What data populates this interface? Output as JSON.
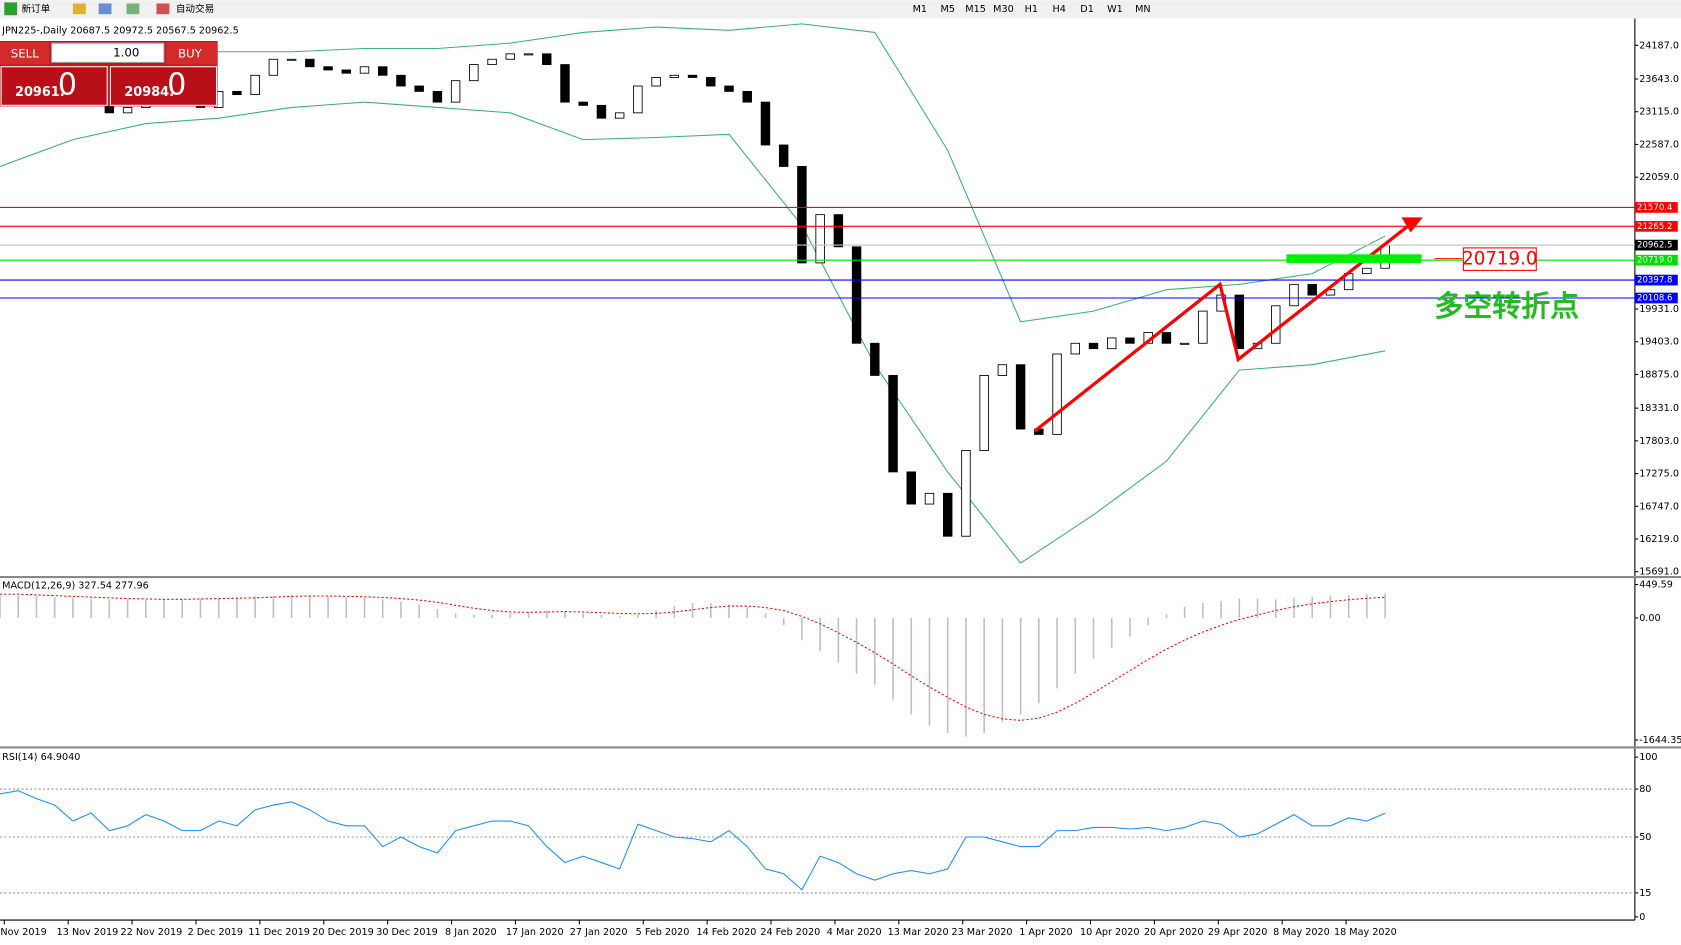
{
  "toolbar": {
    "new_order": "新订单",
    "auto_trading": "自动交易",
    "timeframes": [
      "M1",
      "M5",
      "M15",
      "M30",
      "H1",
      "H4",
      "D1",
      "W1",
      "MN"
    ]
  },
  "trade_panel": {
    "sell": "SELL",
    "buy": "BUY",
    "lots": "1.00",
    "bid_small": "20961.",
    "bid_big": "0",
    "ask_small": "20984.",
    "ask_big": "0"
  },
  "annotations": {
    "level_box": "20719.0",
    "turning_point": "多空转折点"
  },
  "x_axis_labels": [
    "Nov 2019",
    "13 Nov 2019",
    "22 Nov 2019",
    "2 Dec 2019",
    "11 Dec 2019",
    "20 Dec 2019",
    "30 Dec 2019",
    "8 Jan 2020",
    "17 Jan 2020",
    "27 Jan 2020",
    "5 Feb 2020",
    "14 Feb 2020",
    "24 Feb 2020",
    "4 Mar 2020",
    "13 Mar 2020",
    "23 Mar 2020",
    "1 Apr 2020",
    "10 Apr 2020",
    "20 Apr 2020",
    "29 Apr 2020",
    "8 May 2020",
    "18 May 2020"
  ],
  "chart_data": [
    {
      "type": "candlestick",
      "title": "JPN225-,Daily 20687.5 20972.5 20567.5 20962.5",
      "up_color": "#ffffff",
      "down_color": "#000000",
      "band_color": "#3cb371",
      "values": [
        23270,
        23270,
        23270,
        23270,
        23218,
        23322,
        23097,
        23184,
        23357,
        23443,
        23530,
        23184,
        23443,
        23391,
        23703,
        23962,
        23962,
        23841,
        23789,
        23737,
        23841,
        23703,
        23530,
        23443,
        23270,
        23616,
        23876,
        23962,
        24049,
        24049,
        23876,
        23270,
        23218,
        23011,
        23097,
        23530,
        23668,
        23703,
        23668,
        23530,
        23443,
        23270,
        22578,
        22232,
        20675,
        21454,
        20935,
        19378,
        18859,
        17302,
        16783,
        16956,
        16264,
        17648,
        18859,
        19032,
        17994,
        17907,
        19205,
        19378,
        19291,
        19464,
        19378,
        19551,
        19378,
        19378,
        19897,
        20156,
        19291,
        19378,
        19983,
        20329,
        20156,
        20243,
        20502,
        20589,
        20962.5
      ],
      "upper_band": [
        23841,
        23962,
        24135,
        24083,
        24083,
        24135,
        24135,
        24222,
        24395,
        24481,
        24429,
        24533,
        24395,
        22492,
        19724,
        19897,
        20243,
        20329,
        20502,
        21108
      ],
      "lower_band": [
        22232,
        22665,
        22924,
        23011,
        23184,
        23270,
        23184,
        23097,
        22665,
        22699,
        22751,
        21281,
        19032,
        17302,
        15831,
        16609,
        17474,
        18945,
        19032,
        19256
      ],
      "levels": [
        {
          "value": 21570.4,
          "color": "#ff0000"
        },
        {
          "value": 21265.2,
          "color": "#ff0000"
        },
        {
          "value": 20962.5,
          "color": "#c0c0c0",
          "label_bg": "#000000"
        },
        {
          "value": 20719.0,
          "label": "20719.0",
          "color": "#00e000"
        },
        {
          "value": 20397.8,
          "color": "#0000ff"
        },
        {
          "value": 20108.6,
          "color": "#0000ff"
        }
      ],
      "ylim": [
        15640,
        24568
      ],
      "yticks": [
        {
          "value": 24187,
          "label": "24187.0"
        },
        {
          "value": 23643,
          "label": "23643.0"
        },
        {
          "value": 23115,
          "label": "23115.0"
        },
        {
          "value": 22587,
          "label": "22587.0"
        },
        {
          "value": 22059,
          "label": "22059.0"
        },
        {
          "value": 19931,
          "label": "19931.0"
        },
        {
          "value": 19403,
          "label": "19403.0"
        },
        {
          "value": 18875,
          "label": "18875.0"
        },
        {
          "value": 18331,
          "label": "18331.0"
        },
        {
          "value": 17803,
          "label": "17803.0"
        },
        {
          "value": 17275,
          "label": "17275.0"
        },
        {
          "value": 16747,
          "label": "16747.0"
        },
        {
          "value": 16219,
          "label": "16219.0"
        },
        {
          "value": 15691,
          "label": "15691.0"
        }
      ]
    },
    {
      "type": "macd",
      "title": "MACD(12,26,9) 327.54 277.96",
      "histogram_color": "#c0c0c0",
      "signal_color": "#ff0000",
      "values": [
        300,
        300,
        290,
        280,
        270,
        260,
        250,
        250,
        240,
        240,
        250,
        260,
        270,
        280,
        290,
        300,
        310,
        300,
        290,
        280,
        270,
        250,
        220,
        180,
        120,
        60,
        40,
        40,
        60,
        80,
        100,
        90,
        60,
        40,
        20,
        40,
        100,
        160,
        200,
        200,
        180,
        150,
        60,
        -100,
        -300,
        -450,
        -600,
        -750,
        -900,
        -1100,
        -1300,
        -1450,
        -1550,
        -1600,
        -1550,
        -1400,
        -1300,
        -1150,
        -950,
        -750,
        -550,
        -400,
        -250,
        -100,
        50,
        150,
        200,
        230,
        260,
        260,
        250,
        270,
        285,
        300,
        310,
        320,
        327.54
      ],
      "signal": [
        320,
        320,
        310,
        300,
        290,
        280,
        270,
        260,
        255,
        250,
        250,
        255,
        260,
        265,
        270,
        280,
        290,
        295,
        295,
        290,
        285,
        275,
        260,
        240,
        210,
        170,
        130,
        100,
        80,
        75,
        80,
        85,
        80,
        70,
        60,
        55,
        60,
        80,
        110,
        140,
        160,
        160,
        140,
        100,
        20,
        -80,
        -200,
        -330,
        -470,
        -620,
        -780,
        -930,
        -1070,
        -1200,
        -1300,
        -1360,
        -1380,
        -1350,
        -1270,
        -1150,
        -1010,
        -860,
        -710,
        -560,
        -420,
        -300,
        -190,
        -100,
        -20,
        40,
        100,
        150,
        190,
        220,
        245,
        265,
        277.96
      ],
      "ylim": [
        -1644.35,
        449.59
      ],
      "yticks": [
        449.59,
        {
          "value": 0,
          "label": "0.00"
        },
        -1644.35
      ]
    },
    {
      "type": "line",
      "title": "RSI(14) 64.9040",
      "color": "#1e90ff",
      "values": [
        77,
        79,
        74,
        70,
        60,
        65,
        54,
        57,
        64,
        60,
        54,
        54,
        60,
        57,
        67,
        70,
        72,
        67,
        60,
        57,
        57,
        44,
        50,
        44,
        40,
        54,
        57,
        60,
        60,
        57,
        44,
        34,
        38,
        34,
        30,
        58,
        54,
        50,
        49,
        47,
        54,
        44,
        30,
        27,
        17,
        38,
        34,
        27,
        23,
        27,
        29,
        27,
        30,
        50,
        50,
        47,
        44,
        44,
        54,
        54,
        56,
        56,
        55,
        56,
        54,
        56,
        60,
        58,
        50,
        52,
        58,
        64,
        57,
        57,
        62,
        60,
        64.904
      ],
      "ylim": [
        0,
        100
      ],
      "yticks": [
        100,
        80,
        50,
        15,
        0
      ],
      "grid_levels": [
        80,
        50,
        15
      ]
    }
  ]
}
